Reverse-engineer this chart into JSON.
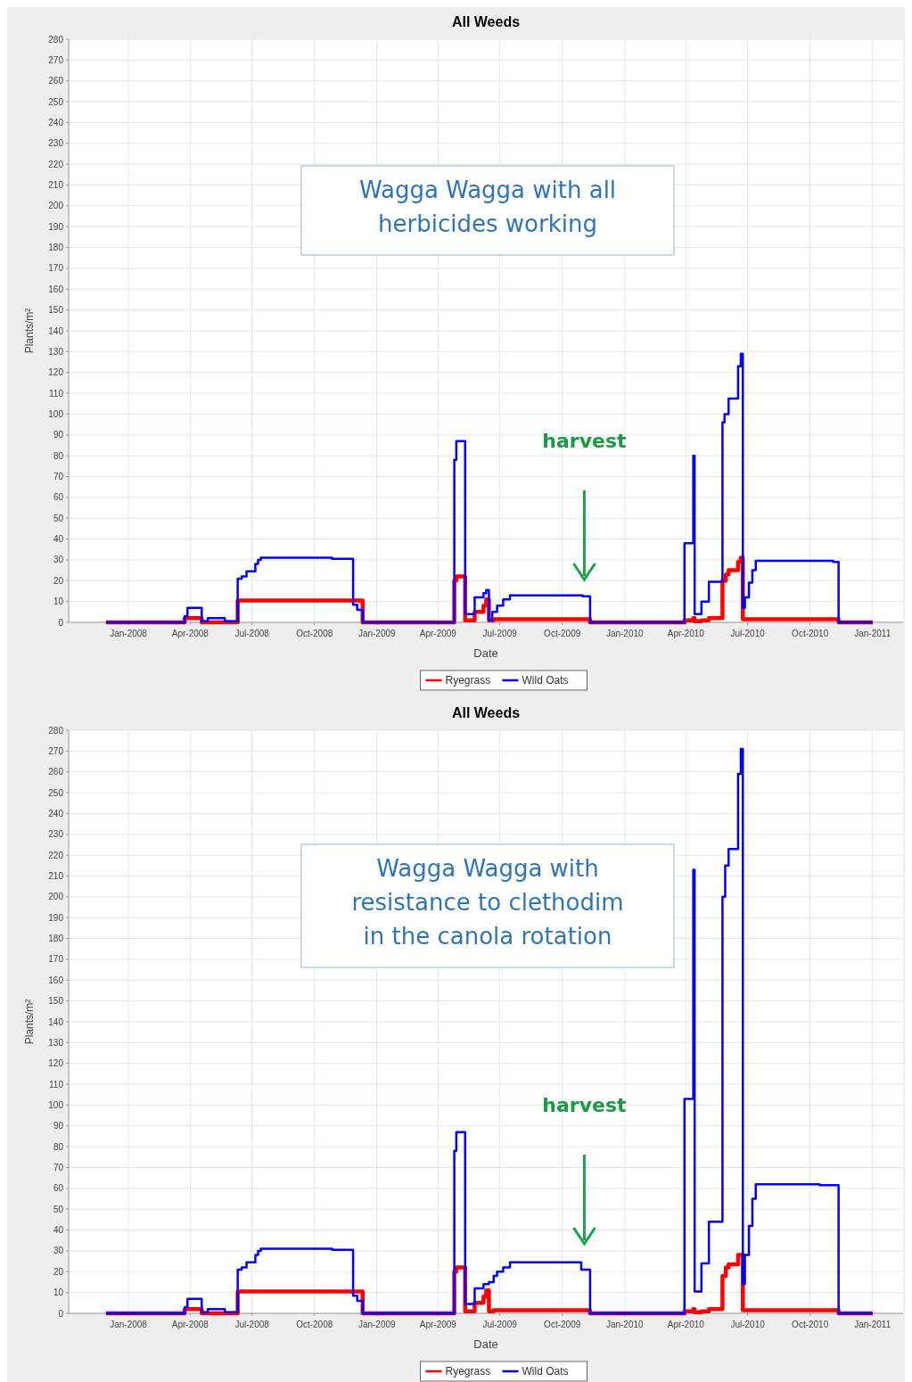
{
  "chart_data": [
    {
      "type": "step",
      "title": "All Weeds",
      "xlabel": "Date",
      "ylabel": "Plants/m²",
      "xlim": [
        "2007-10-05",
        "2011-02-15"
      ],
      "xticks": [
        {
          "value": "2008-01-01",
          "label": "Jan-2008"
        },
        {
          "value": "2008-04-01",
          "label": "Apr-2008"
        },
        {
          "value": "2008-07-01",
          "label": "Jul-2008"
        },
        {
          "value": "2008-10-01",
          "label": "Oct-2008"
        },
        {
          "value": "2009-01-01",
          "label": "Jan-2009"
        },
        {
          "value": "2009-04-01",
          "label": "Apr-2009"
        },
        {
          "value": "2009-07-01",
          "label": "Jul-2009"
        },
        {
          "value": "2009-10-01",
          "label": "Oct-2009"
        },
        {
          "value": "2010-01-01",
          "label": "Jan-2010"
        },
        {
          "value": "2010-04-01",
          "label": "Apr-2010"
        },
        {
          "value": "2010-07-01",
          "label": "Jul-2010"
        },
        {
          "value": "2010-10-01",
          "label": "Oct-2010"
        },
        {
          "value": "2011-01-01",
          "label": "Jan-2011"
        }
      ],
      "ylim": [
        0,
        280
      ],
      "yticks": [
        0,
        10,
        20,
        30,
        40,
        50,
        60,
        70,
        80,
        90,
        100,
        110,
        120,
        130,
        140,
        150,
        160,
        170,
        180,
        190,
        200,
        210,
        220,
        230,
        240,
        250,
        260,
        270,
        280
      ],
      "grid": true,
      "legend": "bottom",
      "line_style": "solid",
      "marker": "none",
      "annotations": [
        "Wagga Wagga with all herbicides working",
        "harvest"
      ],
      "series": [
        {
          "name": "Ryegrass",
          "color": "#ff0000",
          "x": [
            "2007-11-29",
            "2008-03-24",
            "2008-04-18",
            "2008-06-10",
            "2008-12-11",
            "2009-04-25",
            "2009-04-28",
            "2009-05-11",
            "2009-05-25",
            "2009-06-07",
            "2009-06-11",
            "2009-06-15",
            "2009-06-22",
            "2009-11-11",
            "2010-03-30",
            "2010-04-12",
            "2010-04-14",
            "2010-04-24",
            "2010-05-05",
            "2010-05-25",
            "2010-05-30",
            "2010-06-03",
            "2010-06-17",
            "2010-06-21",
            "2010-06-24",
            "2010-11-12",
            "2011-01-01"
          ],
          "values": [
            0,
            2,
            0,
            10.5,
            0,
            20,
            22,
            1,
            5,
            8,
            11,
            1,
            1.5,
            0,
            1,
            2,
            0.5,
            1,
            2,
            20,
            23,
            25,
            29,
            31,
            1.5,
            0,
            0
          ]
        },
        {
          "name": "Wild Oats",
          "color": "#0000ff",
          "x": [
            "2007-11-29",
            "2008-03-24",
            "2008-03-28",
            "2008-04-18",
            "2008-04-27",
            "2008-05-22",
            "2008-06-10",
            "2008-06-16",
            "2008-06-23",
            "2008-07-06",
            "2008-07-10",
            "2008-07-14",
            "2008-10-27",
            "2008-11-27",
            "2008-12-03",
            "2008-12-11",
            "2009-04-25",
            "2009-04-28",
            "2009-05-11",
            "2009-05-25",
            "2009-06-07",
            "2009-06-11",
            "2009-06-15",
            "2009-06-20",
            "2009-06-27",
            "2009-07-06",
            "2009-07-16",
            "2009-10-31",
            "2009-11-11",
            "2010-03-30",
            "2010-04-12",
            "2010-04-14",
            "2010-04-24",
            "2010-05-05",
            "2010-05-25",
            "2010-05-28",
            "2010-06-03",
            "2010-06-17",
            "2010-06-21",
            "2010-06-24",
            "2010-06-27",
            "2010-07-03",
            "2010-07-08",
            "2010-07-13",
            "2010-11-04",
            "2010-11-12",
            "2011-01-01"
          ],
          "values": [
            0,
            3,
            7,
            0.5,
            2,
            0.5,
            21,
            22,
            24.5,
            28,
            30,
            31,
            30.5,
            8.5,
            6,
            0,
            78,
            87,
            4,
            12,
            14,
            15.5,
            1,
            5,
            8,
            11,
            13,
            12.5,
            0,
            38,
            80,
            4,
            10,
            19.5,
            96,
            100,
            107.5,
            123,
            129,
            7,
            12,
            19,
            25,
            29.5,
            29,
            0,
            0
          ]
        }
      ]
    },
    {
      "type": "step",
      "title": "All Weeds",
      "xlabel": "Date",
      "ylabel": "Plants/m²",
      "xlim": [
        "2007-10-05",
        "2011-02-15"
      ],
      "xticks": [
        {
          "value": "2008-01-01",
          "label": "Jan-2008"
        },
        {
          "value": "2008-04-01",
          "label": "Apr-2008"
        },
        {
          "value": "2008-07-01",
          "label": "Jul-2008"
        },
        {
          "value": "2008-10-01",
          "label": "Oct-2008"
        },
        {
          "value": "2009-01-01",
          "label": "Jan-2009"
        },
        {
          "value": "2009-04-01",
          "label": "Apr-2009"
        },
        {
          "value": "2009-07-01",
          "label": "Jul-2009"
        },
        {
          "value": "2009-10-01",
          "label": "Oct-2009"
        },
        {
          "value": "2010-01-01",
          "label": "Jan-2010"
        },
        {
          "value": "2010-04-01",
          "label": "Apr-2010"
        },
        {
          "value": "2010-07-01",
          "label": "Jul-2010"
        },
        {
          "value": "2010-10-01",
          "label": "Oct-2010"
        },
        {
          "value": "2011-01-01",
          "label": "Jan-2011"
        }
      ],
      "ylim": [
        0,
        280
      ],
      "yticks": [
        0,
        10,
        20,
        30,
        40,
        50,
        60,
        70,
        80,
        90,
        100,
        110,
        120,
        130,
        140,
        150,
        160,
        170,
        180,
        190,
        200,
        210,
        220,
        230,
        240,
        250,
        260,
        270,
        280
      ],
      "grid": true,
      "legend": "bottom",
      "line_style": "solid",
      "marker": "none",
      "annotations": [
        "Wagga Wagga with resistance to clethodim in the canola rotation",
        "harvest"
      ],
      "series": [
        {
          "name": "Ryegrass",
          "color": "#ff0000",
          "x": [
            "2007-11-29",
            "2008-03-24",
            "2008-04-18",
            "2008-06-10",
            "2008-12-11",
            "2009-04-25",
            "2009-04-28",
            "2009-05-11",
            "2009-05-25",
            "2009-06-07",
            "2009-06-11",
            "2009-06-15",
            "2009-06-22",
            "2009-11-11",
            "2010-03-30",
            "2010-04-12",
            "2010-04-14",
            "2010-04-24",
            "2010-05-05",
            "2010-05-25",
            "2010-05-30",
            "2010-06-03",
            "2010-06-17",
            "2010-06-24",
            "2010-11-12",
            "2011-01-01"
          ],
          "values": [
            0,
            2,
            0,
            10.5,
            0,
            20,
            22,
            1,
            5,
            8,
            11,
            1,
            1.5,
            0,
            1,
            2,
            0.5,
            1,
            2,
            18,
            22,
            23.5,
            28,
            1.5,
            0,
            0
          ]
        },
        {
          "name": "Wild Oats",
          "color": "#0000ff",
          "x": [
            "2007-11-29",
            "2008-03-24",
            "2008-03-28",
            "2008-04-18",
            "2008-04-27",
            "2008-05-22",
            "2008-06-10",
            "2008-06-16",
            "2008-06-23",
            "2008-07-06",
            "2008-07-10",
            "2008-07-14",
            "2008-10-27",
            "2008-11-27",
            "2008-12-03",
            "2008-12-11",
            "2009-04-25",
            "2009-04-28",
            "2009-05-11",
            "2009-05-25",
            "2009-06-07",
            "2009-06-15",
            "2009-06-22",
            "2009-06-27",
            "2009-07-06",
            "2009-07-16",
            "2009-10-29",
            "2009-11-11",
            "2010-03-30",
            "2010-04-12",
            "2010-04-14",
            "2010-04-24",
            "2010-05-05",
            "2010-05-25",
            "2010-05-29",
            "2010-06-03",
            "2010-06-17",
            "2010-06-21",
            "2010-06-24",
            "2010-06-27",
            "2010-07-03",
            "2010-07-08",
            "2010-07-13",
            "2010-10-15",
            "2010-11-12",
            "2011-01-01"
          ],
          "values": [
            0,
            3,
            7,
            0.5,
            2,
            0.5,
            21,
            22,
            24.5,
            28,
            30,
            31,
            30.5,
            8.5,
            6,
            0,
            78,
            87,
            4.5,
            12,
            14,
            15,
            18,
            20,
            22,
            24.5,
            21,
            0,
            103,
            213,
            10.5,
            24,
            44,
            200,
            215,
            223,
            259,
            271,
            14,
            28,
            42,
            55,
            62,
            61.5,
            0,
            0
          ]
        }
      ]
    }
  ]
}
